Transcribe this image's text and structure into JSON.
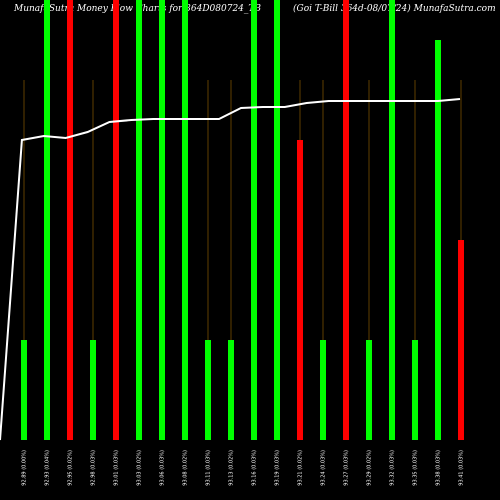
{
  "chart_data": {
    "type": "bar",
    "title_left": "MunafaSutra Money Flow Charts for 364D080724_TB",
    "title_right": "(Goi T-Bill 364d-08/07/24) MunafaSutra.com",
    "categories": [
      "92.89 (0.00%)",
      "92.93 (0.04%)",
      "92.95 (0.02%)",
      "92.98 (0.03%)",
      "93.01 (0.03%)",
      "93.03 (0.02%)",
      "93.06 (0.03%)",
      "93.08 (0.02%)",
      "93.11 (0.03%)",
      "93.13 (0.02%)",
      "93.16 (0.03%)",
      "93.19 (0.03%)",
      "93.21 (0.02%)",
      "93.24 (0.03%)",
      "93.27 (0.03%)",
      "93.29 (0.02%)",
      "93.32 (0.03%)",
      "93.35 (0.03%)",
      "93.38 (0.03%)",
      "93.41 (0.03%)"
    ],
    "bar_colors": [
      "green",
      "green",
      "red",
      "green",
      "red",
      "green",
      "green",
      "green",
      "green",
      "green",
      "green",
      "green",
      "red",
      "green",
      "red",
      "green",
      "green",
      "green",
      "green",
      "red"
    ],
    "bar_values": [
      100,
      840,
      840,
      100,
      840,
      840,
      840,
      840,
      100,
      100,
      840,
      840,
      300,
      100,
      840,
      100,
      840,
      100,
      400,
      200
    ],
    "bar_ymax": 420,
    "line_values": [
      0.0,
      300.0,
      304.0,
      302.0,
      308.0,
      318.0,
      320.0,
      321.0,
      321.0,
      321.0,
      321.0,
      332.0,
      333.0,
      333.0,
      337.0,
      339.0,
      339.0,
      339.0,
      339.0,
      339.0,
      339.0,
      341.0
    ],
    "line_ymax": 420,
    "colors": {
      "green": "#00ff00",
      "red": "#ff0000",
      "line": "#ffffff",
      "grid": "#8B5A00",
      "background": "#000000"
    },
    "grid": true
  }
}
